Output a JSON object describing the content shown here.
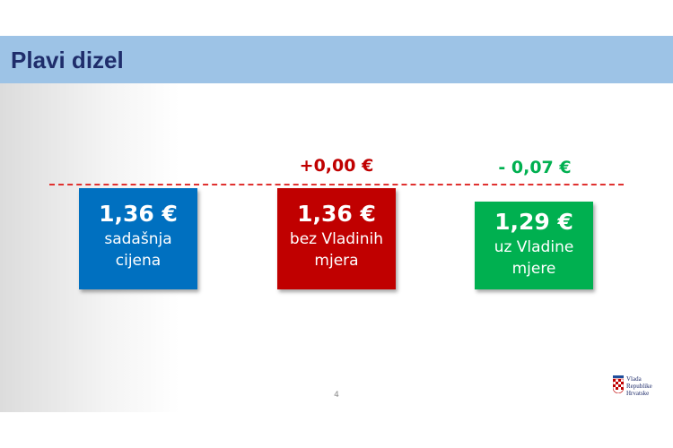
{
  "header": {
    "title": "Plavi dizel"
  },
  "cards": [
    {
      "price": "1,36 €",
      "label": "sadašnja cijena"
    },
    {
      "price": "1,36 €",
      "label": "bez Vladinih mjera",
      "change": "+0,00 €"
    },
    {
      "price": "1,29 €",
      "label": "uz Vladine mjere",
      "change": "- 0,07 €"
    }
  ],
  "page_number": "4",
  "logo": {
    "lines": [
      "Vlada",
      "Republike",
      "Hrvatske"
    ]
  }
}
